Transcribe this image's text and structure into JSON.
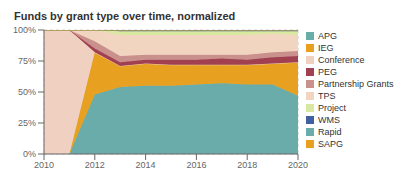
{
  "chart_data": {
    "type": "area",
    "title": "Funds by grant type over time, normalized",
    "stacked": true,
    "grid": true,
    "legend": "right",
    "x": [
      2010,
      2011,
      2012,
      2013,
      2014,
      2015,
      2016,
      2017,
      2018,
      2019,
      2020
    ],
    "xlim": [
      2010,
      2020
    ],
    "xticks": [
      2010,
      2012,
      2014,
      2016,
      2018,
      2020
    ],
    "ylim": [
      0,
      100
    ],
    "yticks": [
      {
        "value": 0,
        "label": "0%"
      },
      {
        "value": 25,
        "label": "25%"
      },
      {
        "value": 50,
        "label": "50%"
      },
      {
        "value": 75,
        "label": "75%"
      },
      {
        "value": 100,
        "label": "100%"
      }
    ],
    "series": [
      {
        "name": "APG",
        "color": "#6aacaa",
        "values": [
          0,
          0,
          48,
          54,
          55,
          55,
          56,
          57,
          56,
          56,
          47
        ]
      },
      {
        "name": "IEG",
        "color": "#e8a020",
        "values": [
          0,
          0,
          34,
          17,
          18,
          17,
          16,
          15,
          16,
          17,
          27
        ]
      },
      {
        "name": "Conference",
        "color": "#f0d0c0",
        "values": [
          100,
          100,
          0,
          0,
          0,
          0,
          0,
          0,
          0,
          0,
          0
        ]
      },
      {
        "name": "PEG",
        "color": "#a04050",
        "values": [
          0,
          0,
          3,
          3,
          3,
          4,
          4,
          5,
          4,
          5,
          5
        ]
      },
      {
        "name": "Partnership Grants",
        "color": "#c9908c",
        "values": [
          0,
          0,
          6,
          5,
          4,
          4,
          4,
          3,
          4,
          4,
          4
        ]
      },
      {
        "name": "TPS",
        "color": "#f2d5c0",
        "values": [
          0,
          0,
          9,
          17,
          16,
          16,
          16,
          16,
          16,
          15,
          13
        ]
      },
      {
        "name": "Project",
        "color": "#d8e8a0",
        "values": [
          0,
          0,
          0,
          3,
          3,
          3,
          3,
          3,
          3,
          2,
          3
        ]
      },
      {
        "name": "WMS",
        "color": "#4060a0",
        "values": [
          0,
          0,
          0,
          1,
          1,
          1,
          1,
          1,
          1,
          1,
          1
        ]
      },
      {
        "name": "Rapid",
        "color": "#6aacaa",
        "values": [
          0,
          0,
          0,
          0,
          0,
          0,
          0,
          0,
          0,
          0,
          0
        ]
      },
      {
        "name": "SAPG",
        "color": "#e8a020",
        "values": [
          0,
          0,
          0,
          0,
          0,
          0,
          0,
          0,
          0,
          0,
          0
        ]
      }
    ]
  }
}
